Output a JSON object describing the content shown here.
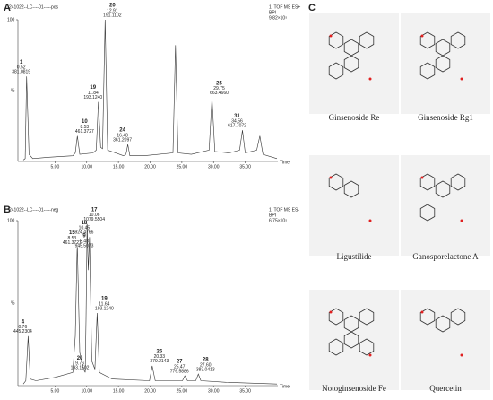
{
  "panel_labels": [
    "A",
    "B",
    "C"
  ],
  "chart_data": [
    {
      "type": "line",
      "header": "241022--LC----01-----pos",
      "mode": "1: TOF MS ES+",
      "trace": "BPI",
      "intensity": "9.82×10⁵",
      "xlabel": "Time",
      "ylabel": "%",
      "x": [
        0,
        0.3,
        0.52,
        0.9,
        1.5,
        4,
        7.8,
        8.2,
        8.53,
        8.9,
        11.0,
        11.5,
        11.84,
        12.2,
        12.5,
        12.91,
        13.3,
        15.8,
        16.2,
        16.48,
        16.8,
        19,
        23.6,
        24.0,
        24.4,
        26.5,
        29.3,
        29.75,
        30.2,
        32.5,
        34.1,
        34.56,
        35.0,
        36.8,
        37.3,
        37.8,
        40
      ],
      "series": [
        {
          "color": "#333333",
          "values": [
            1,
            2,
            60,
            5,
            2,
            3,
            4,
            6,
            18,
            5,
            6,
            8,
            42,
            10,
            9,
            100,
            8,
            4,
            5,
            12,
            4,
            4,
            6,
            82,
            6,
            5,
            8,
            45,
            7,
            6,
            8,
            22,
            6,
            8,
            18,
            5,
            2
          ]
        }
      ],
      "xlim": [
        0,
        40
      ],
      "xticks": [
        {
          "value": 5,
          "label": "5.00"
        },
        {
          "value": 10,
          "label": "10.00"
        },
        {
          "value": 15,
          "label": "15.00"
        },
        {
          "value": 20,
          "label": "20.00"
        },
        {
          "value": 25,
          "label": "25.00"
        },
        {
          "value": 30,
          "label": "30.00"
        },
        {
          "value": 35,
          "label": "35.00"
        }
      ],
      "ylim": [
        0,
        100
      ],
      "yticks": [
        100
      ],
      "annotations": [
        {
          "label": "1",
          "rt": "0.52",
          "mz": "381.0819"
        },
        {
          "label": "10",
          "rt": "8.53",
          "mz": "461.3727"
        },
        {
          "label": "19",
          "rt": "11.84",
          "mz": "193.1240"
        },
        {
          "label": "20",
          "rt": "12.91",
          "mz": "191.1102"
        },
        {
          "label": "24",
          "rt": "16.48",
          "mz": "361.2097"
        },
        {
          "label": "25",
          "rt": "29.75",
          "mz": "663.4660"
        },
        {
          "label": "31",
          "rt": "34.56",
          "mz": "617.7072"
        }
      ]
    },
    {
      "type": "line",
      "header": "241022--LC----01-----neg",
      "mode": "1: TOF MS ES-",
      "trace": "BPI",
      "intensity": "6.75×10⁵",
      "xlabel": "Time",
      "ylabel": "%",
      "x": [
        0,
        0.4,
        0.76,
        1.1,
        2,
        5,
        7.8,
        8.2,
        8.48,
        8.53,
        8.9,
        9.5,
        9.76,
        9.9,
        10.06,
        10.25,
        10.45,
        10.8,
        11.3,
        11.64,
        12.0,
        14,
        19.9,
        20.33,
        20.8,
        25.1,
        25.47,
        25.9,
        27.2,
        27.6,
        28.0,
        32,
        40
      ],
      "series": [
        {
          "color": "#333333",
          "values": [
            1,
            3,
            30,
            4,
            3,
            5,
            8,
            30,
            82,
            84,
            20,
            10,
            8,
            40,
            98,
            70,
            90,
            15,
            10,
            44,
            8,
            4,
            3,
            12,
            3,
            3,
            6,
            3,
            3,
            7,
            3,
            2,
            1
          ]
        }
      ],
      "xlim": [
        0,
        40
      ],
      "xticks": [
        {
          "value": 5,
          "label": "5.00"
        },
        {
          "value": 10,
          "label": "10.00"
        },
        {
          "value": 15,
          "label": "15.00"
        },
        {
          "value": 20,
          "label": "20.00"
        },
        {
          "value": 25,
          "label": "25.00"
        },
        {
          "value": 30,
          "label": "30.00"
        },
        {
          "value": 35,
          "label": "35.00"
        }
      ],
      "ylim": [
        0,
        100
      ],
      "yticks": [
        100
      ],
      "annotations": [
        {
          "label": "4",
          "rt": "0.76",
          "mz": "445.2304"
        },
        {
          "label": "9",
          "rt": "8.48",
          "mz": "945.5073"
        },
        {
          "label": "15",
          "rt": "8.53",
          "mz": "461.3727"
        },
        {
          "label": "17",
          "rt": "10.06",
          "mz": "1079.5504"
        },
        {
          "label": "18",
          "rt": "10.45",
          "mz": "924.4766"
        },
        {
          "label": "19",
          "rt": "11.64",
          "mz": "193.1240"
        },
        {
          "label": "20",
          "rt": "9.76",
          "mz": "193.1502"
        },
        {
          "label": "26",
          "rt": "20.33",
          "mz": "379.2143"
        },
        {
          "label": "27",
          "rt": "25.47",
          "mz": "776.5886"
        },
        {
          "label": "28",
          "rt": "27.60",
          "mz": "383.0413"
        }
      ]
    }
  ],
  "compounds": [
    "Ginsenoside Re",
    "Ginsenoside Rg1",
    "Ligustilide",
    "Ganosporelactone A",
    "Notoginsenoside Fe",
    "Quercetin"
  ]
}
